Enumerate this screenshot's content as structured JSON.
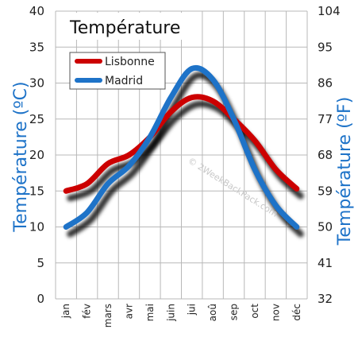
{
  "chart_data": {
    "type": "line",
    "title": "Température",
    "ylabel": "Température  (ºC)",
    "y2label": "Température  (ºF)",
    "watermark": "© 2WeekBackPack.com",
    "categories": [
      "jan",
      "fév",
      "mars",
      "avr",
      "mai",
      "juin",
      "jui",
      "aoû",
      "sep",
      "oct",
      "nov",
      "déc"
    ],
    "ylim": [
      0,
      40
    ],
    "yticks": [
      0,
      5,
      10,
      15,
      20,
      25,
      30,
      35,
      40
    ],
    "y2lim": [
      32,
      104
    ],
    "y2ticks": [
      32,
      41,
      50,
      59,
      68,
      77,
      86,
      95,
      104
    ],
    "grid": true,
    "legend_position": "top-left",
    "series": [
      {
        "name": "Lisbonne",
        "color": "#cc0000",
        "values": [
          15,
          16,
          18.8,
          20,
          22.5,
          26,
          28,
          27.5,
          25,
          22,
          18,
          15.3
        ]
      },
      {
        "name": "Madrid",
        "color": "#1e73c8",
        "values": [
          10,
          12,
          16,
          18.5,
          22.5,
          28,
          32,
          30.5,
          25,
          18,
          13,
          10
        ]
      }
    ]
  }
}
